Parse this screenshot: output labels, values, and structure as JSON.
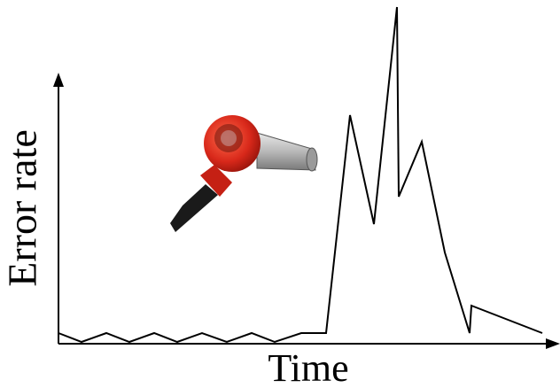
{
  "axes": {
    "y_label": "Error rate",
    "x_label": "Time"
  }
}
